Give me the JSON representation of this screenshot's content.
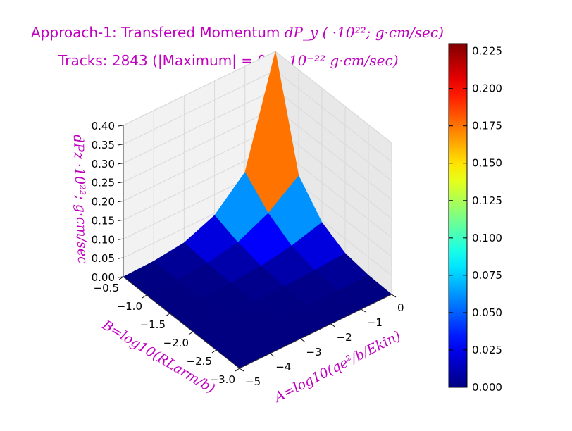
{
  "chart_data": {
    "type": "surface3d",
    "title_line1": "Approach-1: Transfered Momentum dP_y ( ·10^22; g·cm/sec)",
    "title_line2": "Tracks: 2843 (|Maximum| = 0.4 ·10^-22 g·cm/sec)",
    "title1_text": "Approach-1: Transfered Momentum",
    "title1_math": "dP_y ( ·10²²; g·cm/sec)",
    "title2_text": "Tracks: 2843 (|Maximum| =  0.4",
    "title2_math": "·10⁻²² g·cm/sec)",
    "xlabel": "A=log10(qe²/b/Ekin)",
    "ylabel": "B=log10(RLarm/b)",
    "zlabel": "dPz ·10²²; g·cm/sec",
    "x_ticks": [
      "−5",
      "−4",
      "−3",
      "−2",
      "−1",
      "0"
    ],
    "y_ticks": [
      "−3.0",
      "−2.5",
      "−2.0",
      "−1.5",
      "−1.0",
      "−0.5"
    ],
    "z_ticks": [
      "0.00",
      "0.05",
      "0.10",
      "0.15",
      "0.20",
      "0.25",
      "0.30",
      "0.35",
      "0.40"
    ],
    "xlim": [
      -5,
      0
    ],
    "ylim": [
      -3.0,
      -0.5
    ],
    "zlim": [
      0.0,
      0.4
    ],
    "colorbar": {
      "range": [
        0.0,
        0.23
      ],
      "ticks": [
        "0.000",
        "0.025",
        "0.050",
        "0.075",
        "0.100",
        "0.125",
        "0.150",
        "0.175",
        "0.200",
        "0.225"
      ],
      "colormap": "jet"
    },
    "surface": {
      "A_grid": [
        -5,
        -4,
        -3,
        -2,
        -1,
        0
      ],
      "B_grid": [
        -3.0,
        -2.5,
        -2.0,
        -1.5,
        -1.0,
        -0.5
      ],
      "dP": [
        [
          0.0,
          0.0,
          0.0,
          0.0,
          0.0,
          0.0
        ],
        [
          0.0,
          0.0,
          0.0,
          0.0,
          0.001,
          0.002
        ],
        [
          0.0,
          0.0,
          0.0,
          0.002,
          0.006,
          0.012
        ],
        [
          0.0,
          0.0,
          0.002,
          0.008,
          0.022,
          0.045
        ],
        [
          0.0,
          0.001,
          0.006,
          0.022,
          0.06,
          0.12
        ],
        [
          0.0,
          0.002,
          0.012,
          0.045,
          0.12,
          0.4
        ]
      ],
      "peak_value": 0.4
    },
    "colors": {
      "title": "#bf00bf",
      "labels": "#bf00bf"
    }
  }
}
